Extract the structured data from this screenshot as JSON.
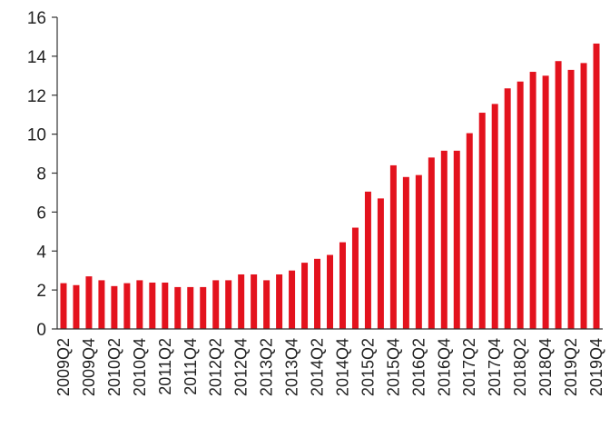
{
  "chart_data": {
    "type": "bar",
    "title": "",
    "xlabel": "",
    "ylabel": "",
    "ylim": [
      0,
      16
    ],
    "yticks": [
      "0",
      "2",
      "4",
      "6",
      "8",
      "10",
      "12",
      "14",
      "16"
    ],
    "grid": false,
    "legend": "none",
    "bar_color": "#e3121d",
    "axis_color": "#333333",
    "categories": [
      "2009Q2",
      "2009Q3",
      "2009Q4",
      "2010Q1",
      "2010Q2",
      "2010Q3",
      "2010Q4",
      "2011Q1",
      "2011Q2",
      "2011Q3",
      "2011Q4",
      "2012Q1",
      "2012Q2",
      "2012Q3",
      "2012Q4",
      "2013Q1",
      "2013Q2",
      "2013Q3",
      "2013Q4",
      "2014Q1",
      "2014Q2",
      "2014Q3",
      "2014Q4",
      "2015Q1",
      "2015Q2",
      "2015Q3",
      "2015Q4",
      "2016Q1",
      "2016Q2",
      "2016Q3",
      "2016Q4",
      "2017Q1",
      "2017Q2",
      "2017Q3",
      "2017Q4",
      "2018Q1",
      "2018Q2",
      "2018Q3",
      "2018Q4",
      "2019Q1",
      "2019Q2",
      "2019Q3",
      "2019Q4"
    ],
    "xtick_labels": [
      "2009Q2",
      "2009Q4",
      "2010Q2",
      "2010Q4",
      "2011Q2",
      "2011Q4",
      "2012Q2",
      "2012Q4",
      "2013Q2",
      "2013Q4",
      "2014Q2",
      "2014Q4",
      "2015Q2",
      "2015Q4",
      "2016Q2",
      "2016Q4",
      "2017Q2",
      "2017Q4",
      "2018Q2",
      "2018Q4",
      "2019Q2",
      "2019Q4"
    ],
    "values": [
      2.35,
      2.25,
      2.7,
      2.5,
      2.2,
      2.35,
      2.5,
      2.38,
      2.38,
      2.15,
      2.15,
      2.15,
      2.5,
      2.5,
      2.8,
      2.8,
      2.5,
      2.8,
      3.0,
      3.4,
      3.6,
      3.8,
      4.45,
      5.2,
      7.05,
      6.7,
      8.4,
      7.8,
      7.9,
      8.8,
      9.15,
      9.15,
      10.05,
      11.1,
      11.55,
      12.35,
      12.7,
      13.2,
      13.0,
      13.75,
      13.3,
      13.65,
      14.65
    ]
  }
}
